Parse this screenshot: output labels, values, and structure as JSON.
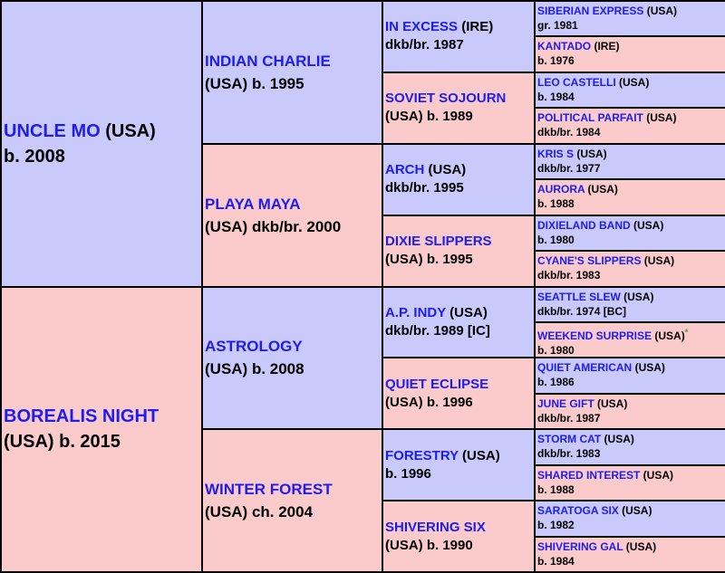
{
  "pedigree": {
    "gen1": [
      {
        "name": "UNCLE MO",
        "origin": " (USA)",
        "line2": "b. 2008"
      },
      {
        "name": "BOREALIS NIGHT",
        "origin": "",
        "line2": "(USA) b. 2015"
      }
    ],
    "gen2": [
      {
        "name": "INDIAN CHARLIE",
        "origin": "",
        "line2": "(USA) b. 1995"
      },
      {
        "name": "PLAYA MAYA",
        "origin": "",
        "line2": "(USA) dkb/br. 2000"
      },
      {
        "name": "ASTROLOGY",
        "origin": "",
        "line2": "(USA) b. 2008"
      },
      {
        "name": "WINTER FOREST",
        "origin": "",
        "line2": "(USA) ch. 2004"
      }
    ],
    "gen3": [
      {
        "name": "IN EXCESS",
        "origin": " (IRE)",
        "line2": "dkb/br. 1987"
      },
      {
        "name": "SOVIET SOJOURN",
        "origin": "",
        "line2": "(USA) b. 1989"
      },
      {
        "name": "ARCH",
        "origin": " (USA)",
        "line2": "dkb/br. 1995"
      },
      {
        "name": "DIXIE SLIPPERS",
        "origin": "",
        "line2": "(USA) b. 1995"
      },
      {
        "name": "A.P. INDY",
        "origin": " (USA)",
        "line2": "dkb/br. 1989 [IC]"
      },
      {
        "name": "QUIET ECLIPSE",
        "origin": "",
        "line2": "(USA) b. 1996"
      },
      {
        "name": "FORESTRY",
        "origin": " (USA)",
        "line2": "b. 1996"
      },
      {
        "name": "SHIVERING SIX",
        "origin": "",
        "line2": "(USA) b. 1990"
      }
    ],
    "gen4": [
      {
        "name": "SIBERIAN EXPRESS",
        "origin": " (USA)",
        "line2": "gr. 1981"
      },
      {
        "name": "KANTADO",
        "origin": " (IRE)",
        "line2": "b. 1976"
      },
      {
        "name": "LEO CASTELLI",
        "origin": " (USA)",
        "line2": "b. 1984"
      },
      {
        "name": "POLITICAL PARFAIT",
        "origin": " (USA)",
        "line2": "dkb/br. 1984"
      },
      {
        "name": "KRIS S",
        "origin": " (USA)",
        "line2": "dkb/br. 1977"
      },
      {
        "name": "AURORA",
        "origin": " (USA)",
        "line2": "b. 1988"
      },
      {
        "name": "DIXIELAND BAND",
        "origin": " (USA)",
        "line2": "b. 1980"
      },
      {
        "name": "CYANE'S SLIPPERS",
        "origin": " (USA)",
        "line2": "dkb/br. 1983"
      },
      {
        "name": "SEATTLE SLEW",
        "origin": " (USA)",
        "line2": "dkb/br. 1974 [BC]"
      },
      {
        "name": "WEEKEND SURPRISE",
        "origin": " (USA)",
        "mark": "*",
        "line2": "b. 1980"
      },
      {
        "name": "QUIET AMERICAN",
        "origin": " (USA)",
        "line2": "b. 1986"
      },
      {
        "name": "JUNE GIFT",
        "origin": " (USA)",
        "line2": "dkb/br. 1987"
      },
      {
        "name": "STORM CAT",
        "origin": " (USA)",
        "line2": "dkb/br. 1983"
      },
      {
        "name": "SHARED INTEREST",
        "origin": " (USA)",
        "line2": "b. 1988"
      },
      {
        "name": "SARATOGA SIX",
        "origin": " (USA)",
        "line2": "b. 1982"
      },
      {
        "name": "SHIVERING GAL",
        "origin": " (USA)",
        "line2": "b. 1984"
      }
    ]
  }
}
